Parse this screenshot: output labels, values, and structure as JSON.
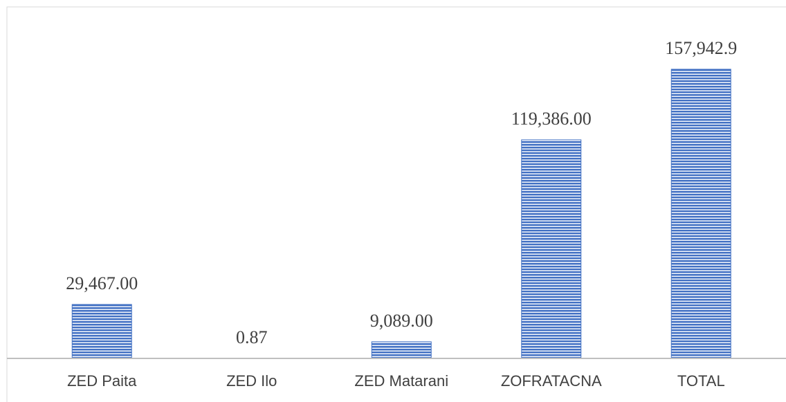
{
  "chart_data": {
    "type": "bar",
    "categories": [
      "ZED Paita",
      "ZED Ilo",
      "ZED Matarani",
      "ZOFRATACNA",
      "TOTAL"
    ],
    "values": [
      29467.0,
      0.87,
      9089.0,
      119386.0,
      157942.9
    ],
    "value_labels": [
      "29,467.00",
      "0.87",
      "9,089.00",
      "119,386.00",
      "157,942.9"
    ],
    "color": "#4472c4",
    "ylim": [
      0,
      160000
    ]
  }
}
